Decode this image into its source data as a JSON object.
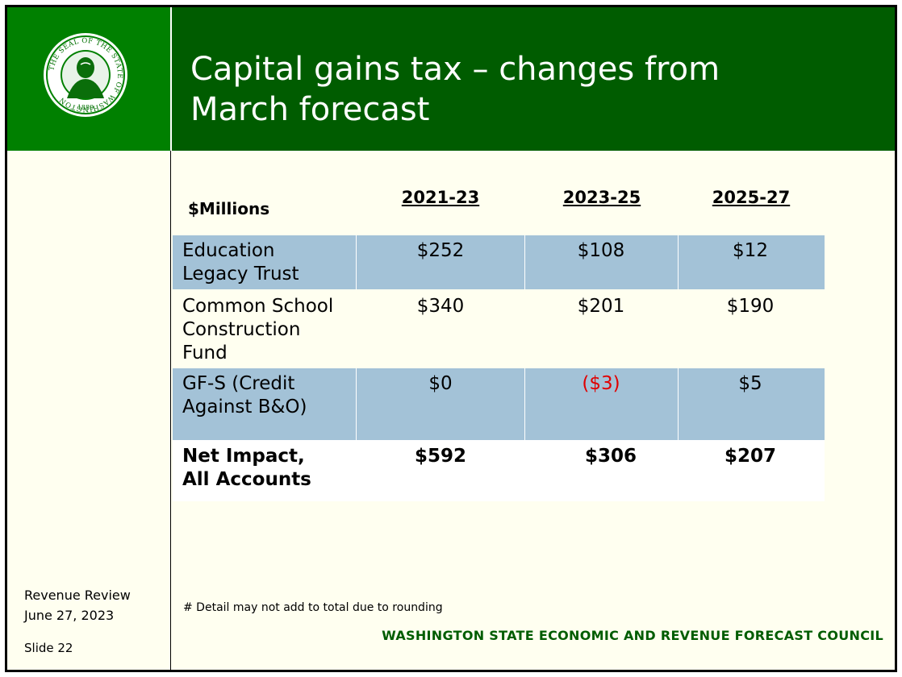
{
  "header": {
    "title_line1": "Capital gains tax – changes from",
    "title_line2": "March forecast",
    "seal_text_top": "THE SEAL OF THE STATE OF WASHINGTON",
    "seal_year": "1889"
  },
  "table": {
    "units_label": "$Millions",
    "columns": [
      "2021-23",
      "2023-25",
      "2025-27"
    ],
    "rows": [
      {
        "label_lines": [
          "Education",
          "Legacy Trust"
        ],
        "values": [
          "$252",
          "$108",
          "$12"
        ]
      },
      {
        "label_lines": [
          "Common School",
          "Construction",
          "Fund"
        ],
        "values": [
          "$340",
          "$201",
          "$190"
        ]
      },
      {
        "label_lines": [
          "GF-S (Credit",
          "Against B&O)"
        ],
        "values": [
          "$0",
          "($3)",
          "$5"
        ]
      },
      {
        "label_lines": [
          "Net Impact,",
          "All Accounts"
        ],
        "values": [
          "$592",
          "$306",
          "$207"
        ]
      }
    ]
  },
  "footnote": "# Detail may not add to total due to rounding",
  "council": "WASHINGTON STATE ECONOMIC AND REVENUE FORECAST COUNCIL",
  "sidebar": {
    "line1": "Revenue Review",
    "line2": "June 27, 2023",
    "slide": "Slide 22"
  },
  "colors": {
    "header_green": "#005c00",
    "sidebar_green": "#008000",
    "row_shade": "#a3c2d7",
    "negative_red": "#e00000"
  }
}
